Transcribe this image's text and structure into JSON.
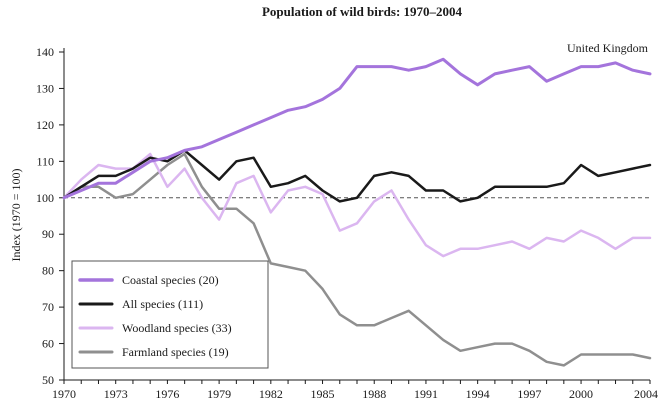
{
  "chart_data": {
    "type": "line",
    "title": "Population of wild birds: 1970–2004",
    "subtitle": "United Kingdom",
    "xlabel": "",
    "ylabel": "Index (1970 = 100)",
    "xlim": [
      1970,
      2004
    ],
    "ylim": [
      50,
      140
    ],
    "x_ticks": [
      "1970",
      "1973",
      "1976",
      "1979",
      "1982",
      "1985",
      "1988",
      "1991",
      "1994",
      "1997",
      "2000",
      "2004"
    ],
    "x_tick_values": [
      1970,
      1973,
      1976,
      1979,
      1982,
      1985,
      1988,
      1991,
      1994,
      1997,
      2000,
      2004
    ],
    "y_ticks": [
      "50",
      "60",
      "70",
      "80",
      "90",
      "100",
      "110",
      "120",
      "130",
      "140"
    ],
    "y_tick_values": [
      50,
      60,
      70,
      80,
      90,
      100,
      110,
      120,
      130,
      140
    ],
    "reference_line": 100,
    "legend_position": "bottom-left",
    "x": [
      1970,
      1971,
      1972,
      1973,
      1974,
      1975,
      1976,
      1977,
      1978,
      1979,
      1980,
      1981,
      1982,
      1983,
      1984,
      1985,
      1986,
      1987,
      1988,
      1989,
      1990,
      1991,
      1992,
      1993,
      1994,
      1995,
      1996,
      1997,
      1998,
      1999,
      2000,
      2001,
      2002,
      2003,
      2004
    ],
    "series": [
      {
        "name": "Coastal species (20)",
        "color": "#a474dc",
        "width": 3,
        "values": [
          100,
          102,
          104,
          104,
          107,
          110,
          111,
          113,
          114,
          116,
          118,
          120,
          122,
          124,
          125,
          127,
          130,
          136,
          136,
          136,
          135,
          136,
          138,
          134,
          131,
          134,
          135,
          136,
          132,
          134,
          136,
          136,
          137,
          135,
          134
        ]
      },
      {
        "name": "All species (111)",
        "color": "#1a1a1a",
        "width": 2.5,
        "values": [
          100,
          103,
          106,
          106,
          108,
          111,
          110,
          113,
          109,
          105,
          110,
          111,
          103,
          104,
          106,
          102,
          99,
          100,
          106,
          107,
          106,
          102,
          102,
          99,
          100,
          103,
          103,
          103,
          103,
          104,
          109,
          106,
          107,
          108,
          109
        ]
      },
      {
        "name": "Woodland species (33)",
        "color": "#dbb6f0",
        "width": 2.5,
        "values": [
          100,
          105,
          109,
          108,
          108,
          112,
          103,
          108,
          100,
          94,
          104,
          106,
          96,
          102,
          103,
          101,
          91,
          93,
          99,
          102,
          94,
          87,
          84,
          86,
          86,
          87,
          88,
          86,
          89,
          88,
          91,
          89,
          86,
          89,
          89
        ]
      },
      {
        "name": "Farmland species (19)",
        "color": "#8f8f8f",
        "width": 2.5,
        "values": [
          100,
          103,
          103,
          100,
          101,
          105,
          109,
          112,
          103,
          97,
          97,
          93,
          82,
          81,
          80,
          75,
          68,
          65,
          65,
          67,
          69,
          65,
          61,
          58,
          59,
          60,
          60,
          58,
          55,
          54,
          57,
          57,
          57,
          57,
          56
        ]
      }
    ]
  }
}
